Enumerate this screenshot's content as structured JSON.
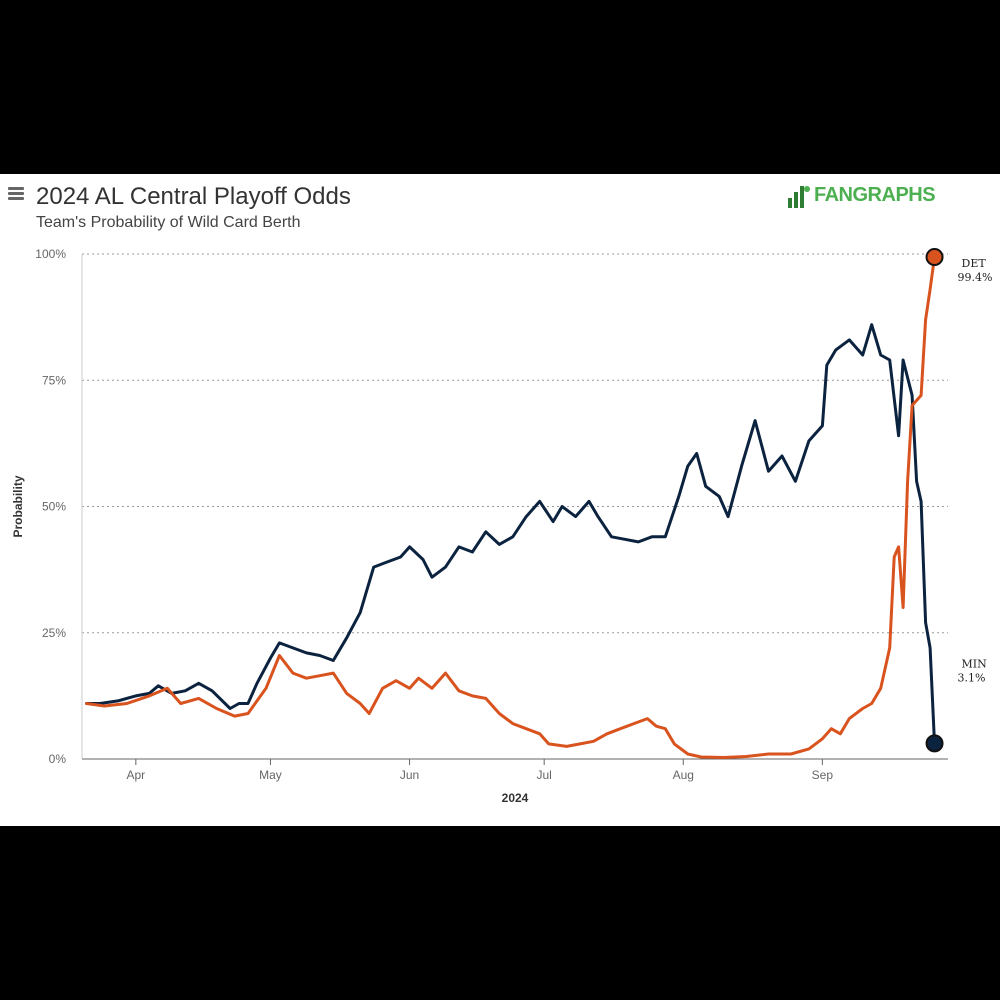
{
  "header": {
    "title": "2024 AL Central Playoff Odds",
    "subtitle": "Team's Probability of Wild Card Berth",
    "logo_text": "FANGRAPHS"
  },
  "colors": {
    "DET": "#d9531e",
    "MIN": "#0c2340",
    "logo": "#4caf50"
  },
  "icons": {
    "menu": "hamburger-menu-icon",
    "logo": "fangraphs-logo-icon"
  },
  "chart_data": {
    "type": "line",
    "title": "2024 AL Central Playoff Odds",
    "subtitle": "Team's Probability of Wild Card Berth",
    "xlabel": "2024",
    "ylabel": "Probability",
    "xlim": [
      "2024-03-20",
      "2024-09-29"
    ],
    "ylim": [
      0,
      100
    ],
    "y_ticks": [
      {
        "value": 0,
        "label": "0%"
      },
      {
        "value": 25,
        "label": "25%"
      },
      {
        "value": 50,
        "label": "50%"
      },
      {
        "value": 75,
        "label": "75%"
      },
      {
        "value": 100,
        "label": "100%"
      }
    ],
    "x_ticks": [
      {
        "date": "2024-04-01",
        "label": "Apr"
      },
      {
        "date": "2024-05-01",
        "label": "May"
      },
      {
        "date": "2024-06-01",
        "label": "Jun"
      },
      {
        "date": "2024-07-01",
        "label": "Jul"
      },
      {
        "date": "2024-08-01",
        "label": "Aug"
      },
      {
        "date": "2024-09-01",
        "label": "Sep"
      }
    ],
    "grid": "horizontal-dotted",
    "series": [
      {
        "name": "MIN",
        "end_label": "3.1%",
        "color": "#0c2340",
        "points": [
          [
            "2024-03-21",
            11
          ],
          [
            "2024-03-24",
            11
          ],
          [
            "2024-03-28",
            11.5
          ],
          [
            "2024-04-01",
            12.5
          ],
          [
            "2024-04-04",
            13
          ],
          [
            "2024-04-06",
            14.5
          ],
          [
            "2024-04-09",
            13
          ],
          [
            "2024-04-12",
            13.5
          ],
          [
            "2024-04-15",
            15
          ],
          [
            "2024-04-18",
            13.5
          ],
          [
            "2024-04-22",
            10
          ],
          [
            "2024-04-24",
            11
          ],
          [
            "2024-04-26",
            11
          ],
          [
            "2024-04-28",
            15
          ],
          [
            "2024-05-01",
            20
          ],
          [
            "2024-05-03",
            23
          ],
          [
            "2024-05-06",
            22
          ],
          [
            "2024-05-09",
            21
          ],
          [
            "2024-05-12",
            20.5
          ],
          [
            "2024-05-15",
            19.5
          ],
          [
            "2024-05-18",
            24
          ],
          [
            "2024-05-21",
            29
          ],
          [
            "2024-05-24",
            38
          ],
          [
            "2024-05-27",
            39
          ],
          [
            "2024-05-30",
            40
          ],
          [
            "2024-06-01",
            42
          ],
          [
            "2024-06-04",
            39.5
          ],
          [
            "2024-06-06",
            36
          ],
          [
            "2024-06-09",
            38
          ],
          [
            "2024-06-12",
            42
          ],
          [
            "2024-06-15",
            41
          ],
          [
            "2024-06-18",
            45
          ],
          [
            "2024-06-21",
            42.5
          ],
          [
            "2024-06-24",
            44
          ],
          [
            "2024-06-27",
            48
          ],
          [
            "2024-06-30",
            51
          ],
          [
            "2024-07-03",
            47
          ],
          [
            "2024-07-05",
            50
          ],
          [
            "2024-07-08",
            48
          ],
          [
            "2024-07-11",
            51
          ],
          [
            "2024-07-13",
            48
          ],
          [
            "2024-07-16",
            44
          ],
          [
            "2024-07-19",
            43.5
          ],
          [
            "2024-07-22",
            43
          ],
          [
            "2024-07-25",
            44
          ],
          [
            "2024-07-28",
            44
          ],
          [
            "2024-07-31",
            52
          ],
          [
            "2024-08-02",
            58
          ],
          [
            "2024-08-04",
            60.5
          ],
          [
            "2024-08-06",
            54
          ],
          [
            "2024-08-09",
            52
          ],
          [
            "2024-08-11",
            48
          ],
          [
            "2024-08-14",
            58
          ],
          [
            "2024-08-17",
            67
          ],
          [
            "2024-08-20",
            57
          ],
          [
            "2024-08-23",
            60
          ],
          [
            "2024-08-26",
            55
          ],
          [
            "2024-08-29",
            63
          ],
          [
            "2024-09-01",
            66
          ],
          [
            "2024-09-02",
            78
          ],
          [
            "2024-09-04",
            81
          ],
          [
            "2024-09-07",
            83
          ],
          [
            "2024-09-10",
            80
          ],
          [
            "2024-09-12",
            86
          ],
          [
            "2024-09-14",
            80
          ],
          [
            "2024-09-16",
            79
          ],
          [
            "2024-09-18",
            64
          ],
          [
            "2024-09-19",
            79
          ],
          [
            "2024-09-21",
            72
          ],
          [
            "2024-09-22",
            55
          ],
          [
            "2024-09-23",
            51
          ],
          [
            "2024-09-24",
            27
          ],
          [
            "2024-09-25",
            22
          ],
          [
            "2024-09-26",
            3.1
          ]
        ]
      },
      {
        "name": "DET",
        "end_label": "99.4%",
        "color": "#d9531e",
        "points": [
          [
            "2024-03-21",
            11
          ],
          [
            "2024-03-25",
            10.5
          ],
          [
            "2024-03-30",
            11
          ],
          [
            "2024-04-04",
            12.5
          ],
          [
            "2024-04-08",
            14
          ],
          [
            "2024-04-11",
            11
          ],
          [
            "2024-04-15",
            12
          ],
          [
            "2024-04-19",
            10
          ],
          [
            "2024-04-23",
            8.5
          ],
          [
            "2024-04-26",
            9
          ],
          [
            "2024-04-28",
            11.5
          ],
          [
            "2024-04-30",
            14
          ],
          [
            "2024-05-03",
            20.5
          ],
          [
            "2024-05-06",
            17
          ],
          [
            "2024-05-09",
            16
          ],
          [
            "2024-05-12",
            16.5
          ],
          [
            "2024-05-15",
            17
          ],
          [
            "2024-05-18",
            13
          ],
          [
            "2024-05-21",
            11
          ],
          [
            "2024-05-23",
            9
          ],
          [
            "2024-05-26",
            14
          ],
          [
            "2024-05-29",
            15.5
          ],
          [
            "2024-06-01",
            14
          ],
          [
            "2024-06-03",
            16
          ],
          [
            "2024-06-06",
            14
          ],
          [
            "2024-06-09",
            17
          ],
          [
            "2024-06-12",
            13.5
          ],
          [
            "2024-06-15",
            12.5
          ],
          [
            "2024-06-18",
            12
          ],
          [
            "2024-06-21",
            9
          ],
          [
            "2024-06-24",
            7
          ],
          [
            "2024-06-27",
            6
          ],
          [
            "2024-06-30",
            5
          ],
          [
            "2024-07-02",
            3
          ],
          [
            "2024-07-06",
            2.5
          ],
          [
            "2024-07-09",
            3
          ],
          [
            "2024-07-12",
            3.5
          ],
          [
            "2024-07-15",
            5
          ],
          [
            "2024-07-18",
            6
          ],
          [
            "2024-07-21",
            7
          ],
          [
            "2024-07-24",
            8
          ],
          [
            "2024-07-26",
            6.5
          ],
          [
            "2024-07-28",
            6
          ],
          [
            "2024-07-30",
            3
          ],
          [
            "2024-08-02",
            1
          ],
          [
            "2024-08-05",
            0.4
          ],
          [
            "2024-08-10",
            0.3
          ],
          [
            "2024-08-15",
            0.5
          ],
          [
            "2024-08-20",
            1
          ],
          [
            "2024-08-25",
            1
          ],
          [
            "2024-08-29",
            2
          ],
          [
            "2024-09-01",
            4
          ],
          [
            "2024-09-03",
            6
          ],
          [
            "2024-09-05",
            5
          ],
          [
            "2024-09-07",
            8
          ],
          [
            "2024-09-10",
            10
          ],
          [
            "2024-09-12",
            11
          ],
          [
            "2024-09-14",
            14
          ],
          [
            "2024-09-16",
            22
          ],
          [
            "2024-09-17",
            40
          ],
          [
            "2024-09-18",
            42
          ],
          [
            "2024-09-19",
            30
          ],
          [
            "2024-09-20",
            55
          ],
          [
            "2024-09-21",
            70
          ],
          [
            "2024-09-23",
            72
          ],
          [
            "2024-09-24",
            87
          ],
          [
            "2024-09-25",
            93
          ],
          [
            "2024-09-26",
            99.4
          ]
        ]
      }
    ]
  }
}
